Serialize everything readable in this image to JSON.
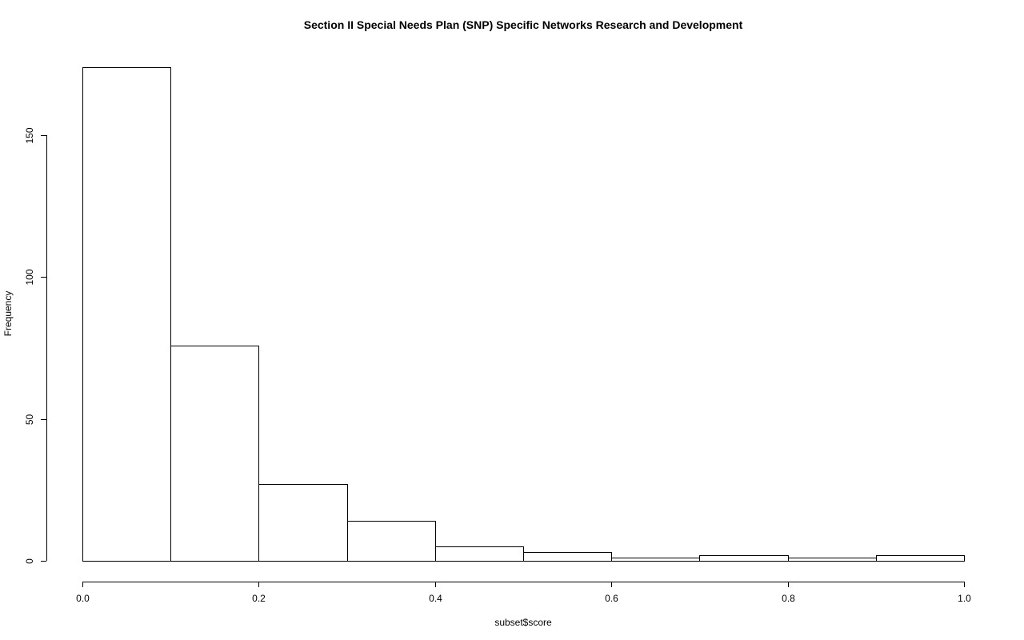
{
  "chart_data": {
    "type": "bar",
    "title": "Section II Special Needs Plan (SNP) Specific Networks Research and Development",
    "xlabel": "subset$score",
    "ylabel": "Frequency",
    "bins": [
      {
        "start": 0.0,
        "end": 0.1,
        "value": 174
      },
      {
        "start": 0.1,
        "end": 0.2,
        "value": 76
      },
      {
        "start": 0.2,
        "end": 0.3,
        "value": 27
      },
      {
        "start": 0.3,
        "end": 0.4,
        "value": 14
      },
      {
        "start": 0.4,
        "end": 0.5,
        "value": 5
      },
      {
        "start": 0.5,
        "end": 0.6,
        "value": 3
      },
      {
        "start": 0.6,
        "end": 0.7,
        "value": 1
      },
      {
        "start": 0.7,
        "end": 0.8,
        "value": 2
      },
      {
        "start": 0.8,
        "end": 0.9,
        "value": 1
      },
      {
        "start": 0.9,
        "end": 1.0,
        "value": 2
      }
    ],
    "x_ticks": [
      "0.0",
      "0.2",
      "0.4",
      "0.6",
      "0.8",
      "1.0"
    ],
    "x_tick_values": [
      0.0,
      0.2,
      0.4,
      0.6,
      0.8,
      1.0
    ],
    "y_ticks": [
      "0",
      "50",
      "100",
      "150"
    ],
    "y_tick_values": [
      0,
      50,
      100,
      150
    ],
    "xlim": [
      0.0,
      1.0
    ],
    "ylim": [
      0,
      174
    ],
    "grid": false,
    "legend": "none",
    "bar_fill": "#ffffff",
    "bar_stroke": "#000000"
  }
}
